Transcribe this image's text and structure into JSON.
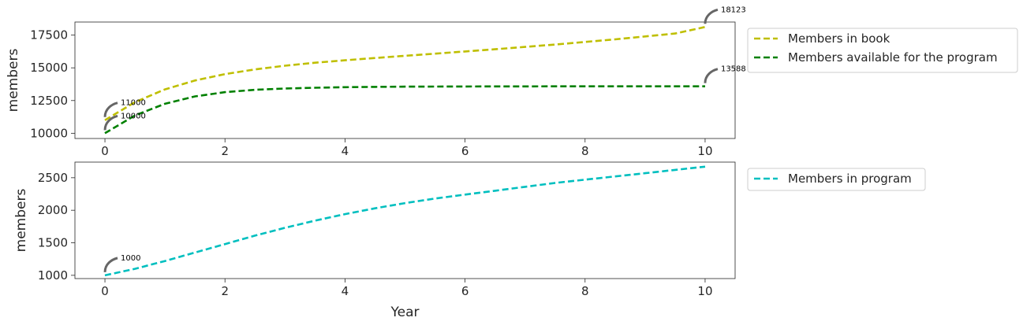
{
  "chart_data": [
    {
      "type": "line",
      "xlabel": "",
      "ylabel": "members",
      "xlim": [
        -0.5,
        10.5
      ],
      "ylim": [
        9600,
        18500
      ],
      "xticks": [
        0,
        2,
        4,
        6,
        8,
        10
      ],
      "xtick_labels": [
        "0",
        "2",
        "4",
        "6",
        "8",
        "10"
      ],
      "yticks": [
        10000,
        12500,
        15000,
        17500
      ],
      "ytick_labels": [
        "10000",
        "12500",
        "15000",
        "17500"
      ],
      "grid": false,
      "legend_position": "outside top-right",
      "x": [
        0,
        0.5,
        1,
        1.5,
        2,
        2.5,
        3,
        3.5,
        4,
        4.5,
        5,
        5.5,
        6,
        6.5,
        7,
        7.5,
        8,
        8.5,
        9,
        9.5,
        10
      ],
      "series": [
        {
          "name": "Members in book",
          "color": "#bfbf00",
          "style": "dashed",
          "values": [
            11000,
            12380,
            13350,
            14030,
            14520,
            14880,
            15160,
            15390,
            15580,
            15750,
            15920,
            16080,
            16250,
            16420,
            16600,
            16780,
            16980,
            17180,
            17400,
            17620,
            18123
          ]
        },
        {
          "name": "Members available for the program",
          "color": "#008000",
          "style": "dashed",
          "values": [
            10000,
            11360,
            12250,
            12820,
            13140,
            13320,
            13420,
            13480,
            13520,
            13545,
            13560,
            13570,
            13576,
            13580,
            13583,
            13585,
            13586,
            13587,
            13587,
            13588,
            13588
          ]
        }
      ],
      "annotations": [
        {
          "text": "11000",
          "x": 0,
          "y": 11000
        },
        {
          "text": "10000",
          "x": 0,
          "y": 10000
        },
        {
          "text": "18123",
          "x": 10,
          "y": 18123
        },
        {
          "text": "13588",
          "x": 10,
          "y": 13588
        }
      ]
    },
    {
      "type": "line",
      "xlabel": "Year",
      "ylabel": "members",
      "xlim": [
        -0.5,
        10.5
      ],
      "ylim": [
        950,
        2740
      ],
      "xticks": [
        0,
        2,
        4,
        6,
        8,
        10
      ],
      "xtick_labels": [
        "0",
        "2",
        "4",
        "6",
        "8",
        "10"
      ],
      "yticks": [
        1000,
        1500,
        2000,
        2500
      ],
      "ytick_labels": [
        "1000",
        "1500",
        "2000",
        "2500"
      ],
      "grid": false,
      "legend_position": "outside top-right",
      "x": [
        0,
        0.5,
        1,
        1.5,
        2,
        2.5,
        3,
        3.5,
        4,
        4.5,
        5,
        5.5,
        6,
        6.5,
        7,
        7.5,
        8,
        8.5,
        9,
        9.5,
        10
      ],
      "series": [
        {
          "name": "Members in program",
          "color": "#00bfbf",
          "style": "dashed",
          "values": [
            1000,
            1100,
            1220,
            1350,
            1480,
            1610,
            1730,
            1840,
            1940,
            2030,
            2110,
            2180,
            2240,
            2300,
            2360,
            2420,
            2470,
            2520,
            2570,
            2620,
            2670
          ]
        }
      ],
      "annotations": [
        {
          "text": "1000",
          "x": 0,
          "y": 1000
        }
      ]
    }
  ]
}
